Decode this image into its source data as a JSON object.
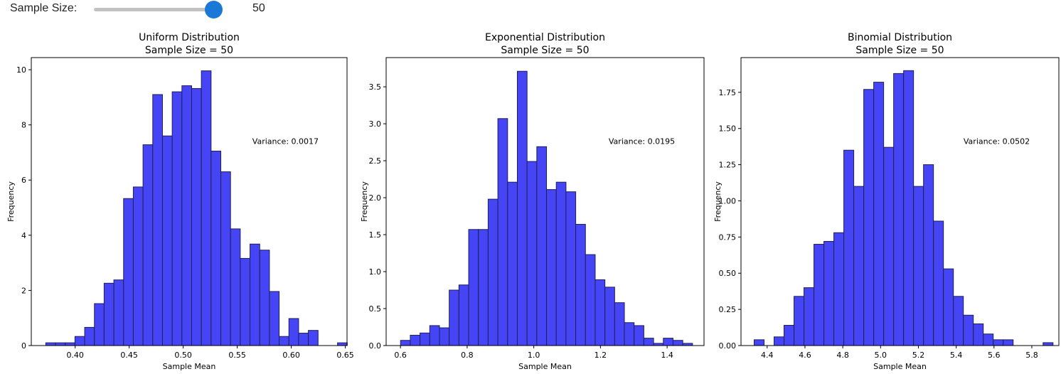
{
  "controls": {
    "slider_label": "Sample Size:",
    "slider_value": "50",
    "slider_min": 10,
    "slider_max": 50,
    "slider_current": 50
  },
  "colors": {
    "bar_fill": "#4545f5",
    "bar_edge": "#1f1f5a",
    "slider_accent": "#1a78d6"
  },
  "chart_data": [
    {
      "type": "bar",
      "title": "Uniform Distribution",
      "subtitle": "Sample Size = 50",
      "xlabel": "Sample Mean",
      "ylabel": "Frequency",
      "annotation": "Variance: 0.0017",
      "xlim": [
        0.3594,
        0.6516
      ],
      "ylim": [
        0,
        10.44
      ],
      "xticks": [
        0.4,
        0.45,
        0.5,
        0.55,
        0.6,
        0.65
      ],
      "xtick_labels": [
        "0.40",
        "0.45",
        "0.50",
        "0.55",
        "0.60",
        "0.65"
      ],
      "yticks": [
        0,
        2,
        4,
        6,
        8,
        10
      ],
      "ytick_labels": [
        "0",
        "2",
        "4",
        "6",
        "8",
        "10"
      ],
      "bin_start": 0.3728,
      "bin_width": 0.009,
      "values": [
        0.1,
        0.1,
        0.1,
        0.33,
        0.66,
        1.52,
        2.26,
        2.38,
        5.33,
        5.75,
        7.28,
        9.1,
        7.6,
        9.2,
        9.42,
        9.32,
        9.96,
        7.05,
        6.3,
        4.23,
        3.16,
        3.68,
        3.46,
        1.96,
        0.33,
        0.98,
        0.45,
        0.55,
        0.0,
        0.0,
        0.1
      ]
    },
    {
      "type": "bar",
      "title": "Exponential Distribution",
      "subtitle": "Sample Size = 50",
      "xlabel": "Sample Mean",
      "ylabel": "Frequency",
      "annotation": "Variance: 0.0195",
      "xlim": [
        0.557,
        1.5107
      ],
      "ylim": [
        0,
        3.895
      ],
      "xticks": [
        0.6,
        0.8,
        1.0,
        1.2,
        1.4
      ],
      "xtick_labels": [
        "0.6",
        "0.8",
        "1.0",
        "1.2",
        "1.4"
      ],
      "yticks": [
        0,
        0.5,
        1.0,
        1.5,
        2.0,
        2.5,
        3.0,
        3.5
      ],
      "ytick_labels": [
        "0.0",
        "0.5",
        "1.0",
        "1.5",
        "2.0",
        "2.5",
        "3.0",
        "3.5"
      ],
      "bin_start": 0.6002,
      "bin_width": 0.0292,
      "values": [
        0.07,
        0.14,
        0.17,
        0.27,
        0.24,
        0.75,
        0.82,
        1.57,
        1.57,
        1.98,
        3.07,
        2.21,
        3.71,
        2.49,
        2.69,
        2.11,
        2.21,
        2.08,
        1.64,
        1.23,
        0.89,
        0.79,
        0.58,
        0.31,
        0.27,
        0.1,
        0.03,
        0.1,
        0.07,
        0.03
      ]
    },
    {
      "type": "bar",
      "title": "Binomial Distribution",
      "subtitle": "Sample Size = 50",
      "xlabel": "Sample Mean",
      "ylabel": "Frequency",
      "annotation": "Variance: 0.0502",
      "xlim": [
        4.2616,
        5.9431
      ],
      "ylim": [
        0,
        1.99
      ],
      "xticks": [
        4.4,
        4.6,
        4.8,
        5.0,
        5.2,
        5.4,
        5.6,
        5.8
      ],
      "xtick_labels": [
        "4.4",
        "4.6",
        "4.8",
        "5.0",
        "5.2",
        "5.4",
        "5.6",
        "5.8"
      ],
      "yticks": [
        0,
        0.25,
        0.5,
        0.75,
        1.0,
        1.25,
        1.5,
        1.75
      ],
      "ytick_labels": [
        "0.00",
        "0.25",
        "0.50",
        "0.75",
        "1.00",
        "1.25",
        "1.50",
        "1.75"
      ],
      "bin_start": 4.3312,
      "bin_width": 0.0527,
      "values": [
        0.04,
        0.0,
        0.06,
        0.14,
        0.34,
        0.4,
        0.7,
        0.72,
        0.78,
        1.35,
        1.1,
        1.77,
        1.82,
        1.37,
        1.88,
        1.9,
        1.1,
        1.25,
        0.86,
        0.53,
        0.34,
        0.21,
        0.15,
        0.08,
        0.04,
        0.04,
        0.0,
        0.0,
        0.0,
        0.02
      ]
    }
  ]
}
